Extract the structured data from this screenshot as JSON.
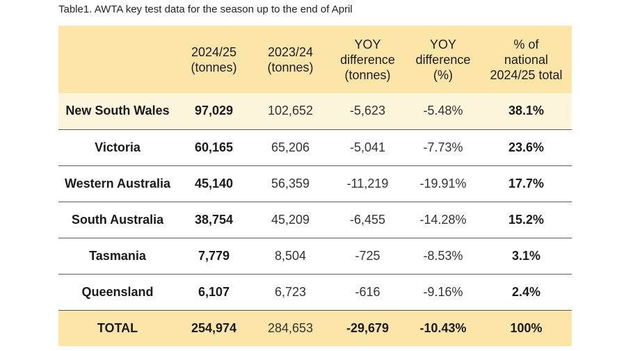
{
  "caption": "Table1. AWTA key test data for the season up to the end of April",
  "columns": [
    {
      "lines": [
        ""
      ]
    },
    {
      "lines": [
        "2024/25",
        "(tonnes)"
      ]
    },
    {
      "lines": [
        "2023/24",
        "(tonnes)"
      ]
    },
    {
      "lines": [
        "YOY",
        "difference",
        "(tonnes)"
      ]
    },
    {
      "lines": [
        "YOY",
        "difference",
        "(%)"
      ]
    },
    {
      "lines": [
        "% of",
        "national",
        "2024/25 total"
      ]
    }
  ],
  "rows": [
    {
      "region": "New South Wales",
      "y2425": "97,029",
      "y2324": "102,652",
      "diff_t": "-5,623",
      "diff_pct": "-5.48%",
      "share": "38.1%"
    },
    {
      "region": "Victoria",
      "y2425": "60,165",
      "y2324": "65,206",
      "diff_t": "-5,041",
      "diff_pct": "-7.73%",
      "share": "23.6%"
    },
    {
      "region": "Western Australia",
      "y2425": "45,140",
      "y2324": "56,359",
      "diff_t": "-11,219",
      "diff_pct": "-19.91%",
      "share": "17.7%"
    },
    {
      "region": "South Australia",
      "y2425": "38,754",
      "y2324": "45,209",
      "diff_t": "-6,455",
      "diff_pct": "-14.28%",
      "share": "15.2%"
    },
    {
      "region": "Tasmania",
      "y2425": "7,779",
      "y2324": "8,504",
      "diff_t": "-725",
      "diff_pct": "-8.53%",
      "share": "3.1%"
    },
    {
      "region": "Queensland",
      "y2425": "6,107",
      "y2324": "6,723",
      "diff_t": "-616",
      "diff_pct": "-9.16%",
      "share": "2.4%"
    }
  ],
  "total": {
    "region": "TOTAL",
    "y2425": "254,974",
    "y2324": "284,653",
    "diff_t": "-29,679",
    "diff_pct": "-10.43%",
    "share": "100%"
  },
  "colors": {
    "header_bg": "#fbe6a8",
    "row_alt_bg": "#fdf4dc"
  }
}
